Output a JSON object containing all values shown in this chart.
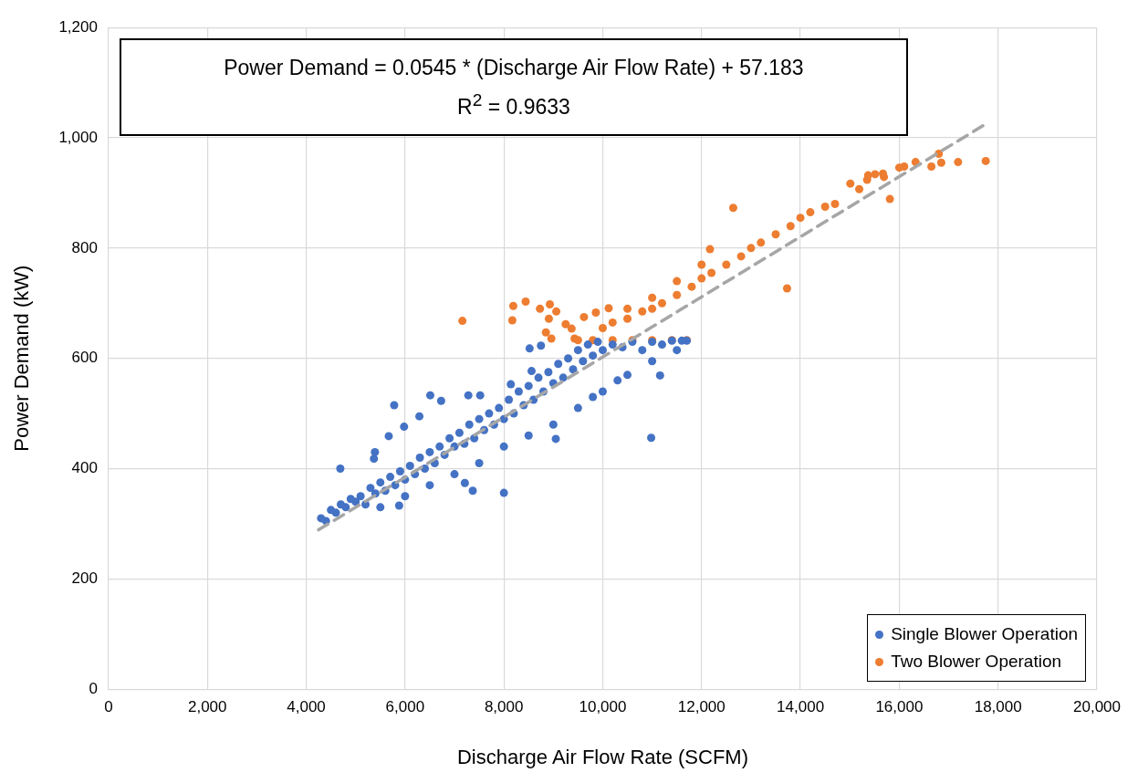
{
  "chart_data": {
    "type": "scatter",
    "xlabel": "Discharge Air Flow Rate (SCFM)",
    "ylabel": "Power Demand (kW)",
    "xlim": [
      0,
      20000
    ],
    "xticks": [
      0,
      {
        "value": 2000,
        "label": "2,000"
      },
      {
        "value": 4000,
        "label": "4,000"
      },
      {
        "value": 6000,
        "label": "6,000"
      },
      {
        "value": 8000,
        "label": "8,000"
      },
      {
        "value": 10000,
        "label": "10,000"
      },
      {
        "value": 12000,
        "label": "12,000"
      },
      {
        "value": 14000,
        "label": "14,000"
      },
      {
        "value": 16000,
        "label": "16,000"
      },
      {
        "value": 18000,
        "label": "18,000"
      },
      {
        "value": 20000,
        "label": "20,000"
      }
    ],
    "ylim": [
      0,
      1200
    ],
    "yticks": [
      0,
      200,
      400,
      600,
      800,
      {
        "value": 1000,
        "label": "1,000"
      },
      {
        "value": 1200,
        "label": "1,200"
      }
    ],
    "grid": true,
    "legend": "bottom right",
    "marker": "circle",
    "annotations": [
      "Power Demand = 0.0545 * (Discharge Air Flow Rate) + 57.183",
      "R$^{2}$ = 0.9633"
    ],
    "series": [
      {
        "name": "Single Blower Operation",
        "color": "#4472c4",
        "x": [
          4300,
          4400,
          4500,
          4600,
          4700,
          4800,
          4900,
          5000,
          5100,
          5200,
          5300,
          5400,
          5500,
          5600,
          5700,
          5800,
          5900,
          6000,
          6100,
          6200,
          6300,
          6400,
          6500,
          6600,
          6700,
          6800,
          6900,
          7000,
          7100,
          7200,
          7300,
          7400,
          7500,
          7600,
          7700,
          7800,
          7900,
          8000,
          8100,
          8200,
          8300,
          8400,
          8500,
          8600,
          8700,
          8800,
          8900,
          9000,
          9100,
          9200,
          9300,
          9400,
          9500,
          9600,
          9700,
          9800,
          9900,
          10000,
          10200,
          10400,
          10600,
          10800,
          11000,
          11200,
          11400,
          11600,
          11700,
          5500,
          6000,
          6500,
          7000,
          7500,
          8000,
          8500,
          9000,
          9500,
          10000,
          10500,
          11000,
          11500,
          9800,
          10300,
          4690,
          5780,
          6510,
          7280,
          7520,
          5670,
          5980,
          6290,
          6730,
          7370,
          8000,
          10980,
          5390,
          5370,
          9050,
          7210,
          5880,
          11160,
          8520,
          8750,
          8140,
          8560
        ],
        "values": [
          310,
          305,
          325,
          320,
          335,
          330,
          345,
          340,
          350,
          335,
          365,
          355,
          375,
          360,
          385,
          370,
          395,
          380,
          405,
          390,
          420,
          400,
          430,
          410,
          440,
          425,
          455,
          440,
          465,
          445,
          480,
          455,
          490,
          470,
          500,
          480,
          510,
          490,
          525,
          500,
          540,
          515,
          550,
          525,
          565,
          540,
          575,
          555,
          590,
          565,
          600,
          580,
          615,
          595,
          625,
          605,
          630,
          615,
          625,
          620,
          630,
          615,
          630,
          625,
          632,
          632,
          632,
          330,
          350,
          370,
          390,
          410,
          440,
          460,
          480,
          510,
          540,
          570,
          595,
          615,
          530,
          560,
          400,
          515,
          533,
          533,
          533,
          459,
          476,
          495,
          523,
          360,
          356,
          456,
          430,
          418,
          454,
          374,
          333,
          569,
          618,
          623,
          553,
          577
        ]
      },
      {
        "name": "Two Blower Operation",
        "color": "#ed7d31",
        "x": [
          7160,
          8190,
          8440,
          8730,
          8930,
          9060,
          8170,
          8910,
          8850,
          9250,
          9370,
          8960,
          9620,
          9860,
          10120,
          9430,
          10000,
          10200,
          10500,
          10800,
          11000,
          11200,
          11500,
          11800,
          12000,
          12200,
          12500,
          12800,
          13000,
          13200,
          13500,
          13800,
          14000,
          14200,
          14500,
          14700,
          9500,
          9800,
          10200,
          10600,
          11000,
          11400,
          11700,
          10500,
          11000,
          11500,
          12000,
          12170,
          12640,
          13730,
          15010,
          15190,
          15370,
          15510,
          15670,
          15690,
          15350,
          15810,
          16000,
          16100,
          16330,
          16650,
          16850,
          17190,
          17750,
          16800
        ],
        "values": [
          668,
          695,
          703,
          690,
          698,
          685,
          669,
          672,
          647,
          662,
          654,
          636,
          675,
          683,
          691,
          636,
          655,
          665,
          672,
          685,
          690,
          700,
          715,
          730,
          745,
          755,
          770,
          785,
          800,
          810,
          825,
          840,
          855,
          865,
          875,
          880,
          633,
          633,
          633,
          633,
          633,
          633,
          633,
          690,
          710,
          740,
          770,
          798,
          873,
          727,
          917,
          907,
          932,
          934,
          935,
          929,
          924,
          889,
          946,
          948,
          956,
          948,
          955,
          956,
          958,
          971
        ]
      },
      {
        "type": "line",
        "color": "#a6a6a6",
        "line_style": "dashed",
        "marker": "none",
        "x": [
          4250,
          17750
        ],
        "values": [
          289,
          1025
        ]
      }
    ]
  }
}
